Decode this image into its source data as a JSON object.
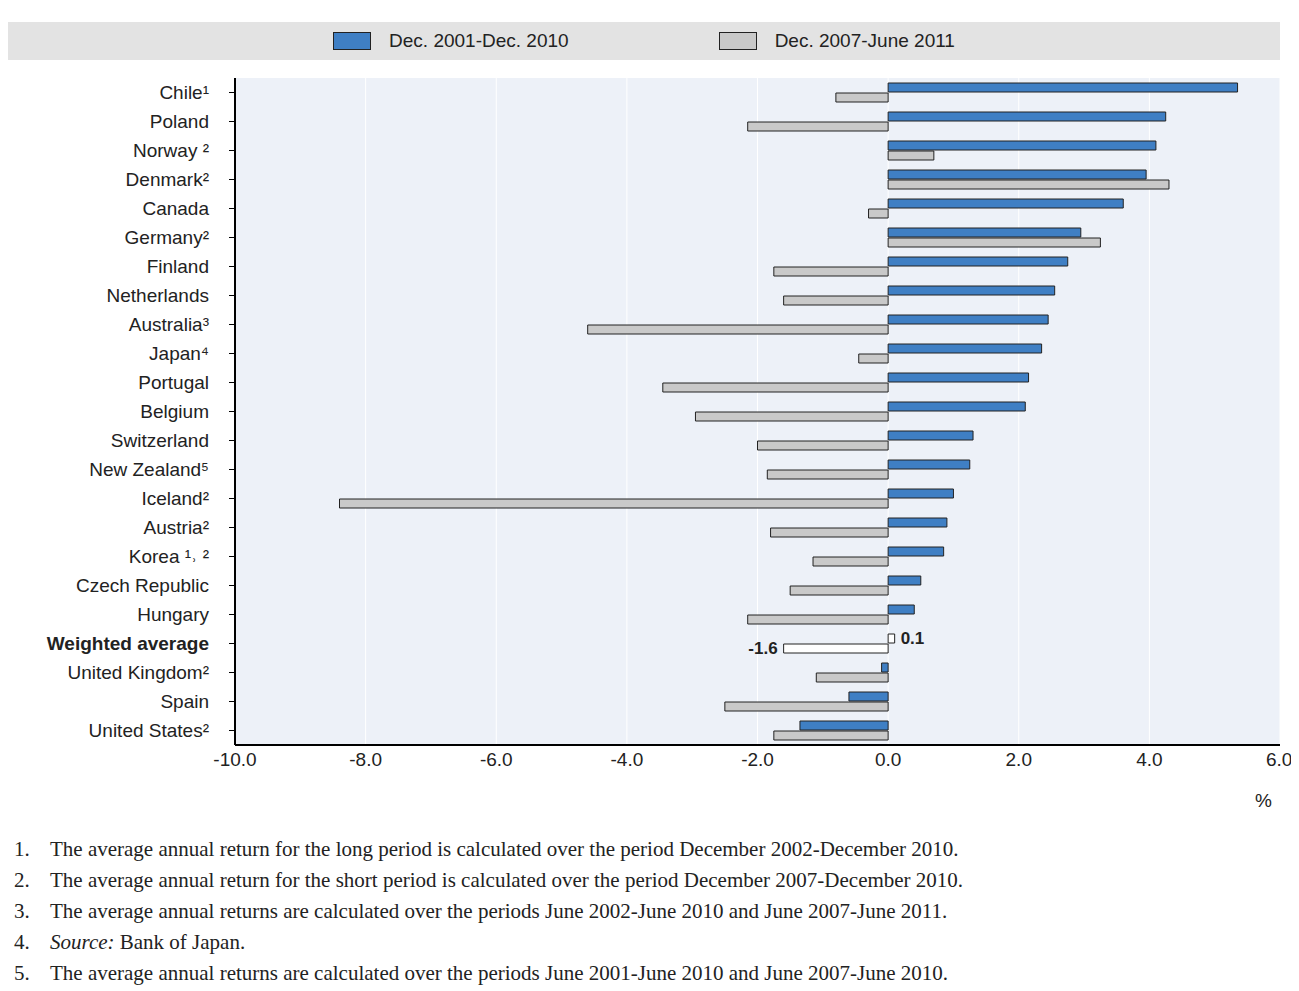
{
  "chart_data": {
    "type": "bar",
    "orientation": "horizontal",
    "grid": true,
    "legend": "top",
    "x_label": "%",
    "categories": [
      "Chile¹",
      "Poland",
      "Norway ²",
      "Denmark²",
      "Canada",
      "Germany²",
      "Finland",
      "Netherlands",
      "Australia³",
      "Japan⁴",
      "Portugal",
      "Belgium",
      "Switzerland",
      "New Zealand⁵",
      "Iceland²",
      "Austria²",
      "Korea ¹˒ ²",
      "Czech Republic",
      "Hungary",
      "Weighted average",
      "United Kingdom²",
      "Spain",
      "United States²"
    ],
    "series": [
      {
        "name": "Dec. 2001-Dec. 2010",
        "color": "#3f7fc4",
        "values": [
          5.35,
          4.25,
          4.1,
          3.95,
          3.6,
          2.95,
          2.75,
          2.55,
          2.45,
          2.35,
          2.15,
          2.1,
          1.3,
          1.25,
          1.0,
          0.9,
          0.85,
          0.5,
          0.4,
          0.1,
          -0.1,
          -0.6,
          -1.35
        ]
      },
      {
        "name": "Dec. 2007-June 2011",
        "color": "#c9c9c9",
        "values": [
          -0.8,
          -2.15,
          0.7,
          4.3,
          -0.3,
          3.25,
          -1.75,
          -1.6,
          -4.6,
          -0.45,
          -3.45,
          -2.95,
          -2.0,
          -1.85,
          -8.4,
          -1.8,
          -1.15,
          -1.5,
          -2.15,
          -1.6,
          -1.1,
          -2.5,
          -1.75
        ]
      }
    ],
    "xlim": [
      -10,
      6
    ],
    "xticks": [
      {
        "value": -10,
        "label": "-10.0"
      },
      {
        "value": -8,
        "label": "-8.0"
      },
      {
        "value": -6,
        "label": "-6.0"
      },
      {
        "value": -4,
        "label": "-4.0"
      },
      {
        "value": -2,
        "label": "-2.0"
      },
      {
        "value": 0,
        "label": "0.0"
      },
      {
        "value": 2,
        "label": "2.0"
      },
      {
        "value": 4,
        "label": "4.0"
      },
      {
        "value": 6,
        "label": "6.0"
      }
    ],
    "annotations": [
      {
        "category": "Weighted average",
        "series": "Dec. 2007-June 2011",
        "text": "-1.6"
      },
      {
        "category": "Weighted average",
        "series": "Dec. 2001-Dec. 2010",
        "text": "0.1"
      }
    ],
    "footnotes": [
      {
        "number": "1.",
        "text": "The average annual return for the long period is calculated over the period December 2002-December 2010."
      },
      {
        "number": "2.",
        "text": "The average annual return for the short period is calculated over the period December 2007-December 2010."
      },
      {
        "number": "3.",
        "text": "The average annual returns are calculated over the periods June 2002-June 2010 and June 2007-June 2011."
      },
      {
        "number": "4.",
        "italic": "Source:",
        "text": " Bank of Japan."
      },
      {
        "number": "5.",
        "text": "The average annual returns are calculated over the periods June 2001-June 2010 and June 2007-June 2010."
      }
    ]
  }
}
